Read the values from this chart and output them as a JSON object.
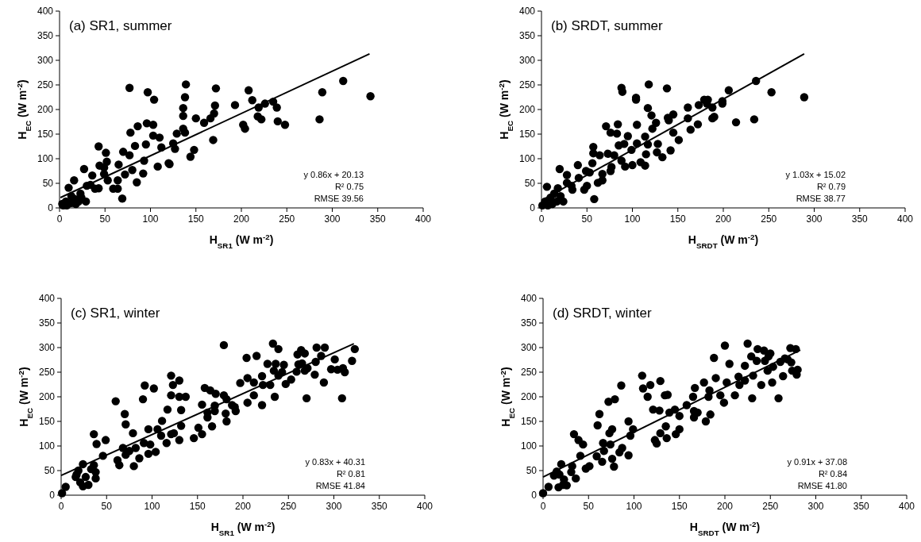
{
  "chart_data": [
    {
      "type": "scatter",
      "title": "(a) SR1, summer",
      "xlabel": "H$_{SR1}$ (W m$^{-2}$)",
      "ylabel": "H$_{EC}$ (W m$^{-2}$)",
      "xlim": [
        0,
        400
      ],
      "ylim": [
        0,
        400
      ],
      "xticks": [
        0,
        50,
        100,
        150,
        200,
        250,
        300,
        350,
        400
      ],
      "yticks": [
        0,
        50,
        100,
        150,
        200,
        250,
        300,
        350,
        400
      ],
      "grid": false,
      "annotations": [
        "y   0.86x + 20.13",
        "R² 0.75",
        "RMSE 39.56"
      ],
      "series": [
        {
          "color": "#000000",
          "marker": "circle",
          "x": [
            77,
            97,
            104,
            139,
            138,
            136,
            136,
            172,
            171,
            170,
            166,
            159,
            150,
            193,
            208,
            212,
            202,
            204,
            219,
            226,
            235,
            239,
            240,
            248,
            218,
            222,
            289,
            312,
            342,
            286,
            136,
            138,
            129,
            125,
            127,
            169,
            148,
            144,
            120,
            121,
            108,
            110,
            103,
            103,
            96,
            86,
            78,
            95,
            83,
            70,
            77,
            112,
            93,
            92,
            85,
            80,
            72,
            65,
            64,
            64,
            69,
            59,
            53,
            49,
            52,
            51,
            43,
            49,
            44,
            36,
            27,
            34,
            39,
            43,
            30,
            16,
            10,
            23,
            29,
            17,
            13,
            7,
            4,
            8,
            13,
            21,
            24,
            3,
            18
          ],
          "values": [
            244,
            235,
            220,
            251,
            225,
            203,
            187,
            243,
            208,
            192,
            182,
            173,
            182,
            209,
            239,
            219,
            169,
            161,
            204,
            212,
            216,
            204,
            176,
            169,
            186,
            180,
            235,
            258,
            227,
            180,
            161,
            153,
            151,
            131,
            120,
            138,
            118,
            104,
            91,
            89,
            84,
            143,
            147,
            169,
            172,
            166,
            153,
            129,
            126,
            114,
            107,
            123,
            96,
            70,
            52,
            77,
            68,
            88,
            56,
            39,
            19,
            39,
            56,
            69,
            94,
            112,
            125,
            82,
            86,
            66,
            79,
            47,
            39,
            40,
            45,
            56,
            41,
            29,
            13,
            18,
            24,
            13,
            5,
            5,
            10,
            13,
            21,
            8,
            8
          ]
        },
        {
          "type": "line",
          "color": "#000000",
          "marker": "none",
          "x": [
            1,
            341
          ],
          "values": [
            21,
            313
          ]
        }
      ]
    },
    {
      "type": "scatter",
      "title": "(b) SRDT, summer",
      "xlabel": "H$_{SRDT}$ (W m$^{-2}$)",
      "ylabel": "H$_{EC}$ (W m$^{-2}$)",
      "xlim": [
        0,
        400
      ],
      "ylim": [
        0,
        400
      ],
      "xticks": [
        0,
        50,
        100,
        150,
        200,
        250,
        300,
        350,
        400
      ],
      "yticks": [
        0,
        50,
        100,
        150,
        200,
        250,
        300,
        350,
        400
      ],
      "grid": false,
      "annotations": [
        "y   1.03x + 15.02",
        "R² 0.79",
        "RMSE 38.77"
      ],
      "series": [
        {
          "color": "#000000",
          "marker": "circle",
          "x": [
            88,
            89,
            118,
            138,
            104,
            104,
            117,
            121,
            126,
            122,
            145,
            139,
            140,
            161,
            161,
            164,
            172,
            173,
            179,
            183,
            182,
            188,
            188,
            190,
            199,
            199,
            206,
            214,
            234,
            236,
            253,
            289,
            71,
            76,
            83,
            84,
            95,
            105,
            85,
            91,
            105,
            99,
            100,
            92,
            88,
            109,
            114,
            115,
            114,
            117,
            128,
            127,
            133,
            142,
            145,
            151,
            57,
            57,
            64,
            56,
            73,
            80,
            76,
            77,
            67,
            67,
            62,
            58,
            53,
            49,
            41,
            40,
            28,
            28,
            20,
            50,
            47,
            34,
            24,
            18,
            14,
            6,
            10,
            4,
            1,
            7,
            12,
            17,
            21,
            33
          ],
          "values": [
            244,
            236,
            251,
            243,
            224,
            220,
            203,
            188,
            173,
            161,
            190,
            183,
            178,
            204,
            182,
            159,
            170,
            209,
            220,
            220,
            212,
            204,
            182,
            185,
            212,
            217,
            239,
            174,
            180,
            258,
            235,
            225,
            166,
            153,
            151,
            170,
            146,
            169,
            127,
            130,
            131,
            118,
            87,
            84,
            96,
            93,
            86,
            109,
            145,
            129,
            130,
            113,
            103,
            117,
            153,
            138,
            124,
            111,
            107,
            91,
            110,
            107,
            75,
            83,
            69,
            56,
            51,
            18,
            72,
            75,
            61,
            87,
            67,
            51,
            79,
            45,
            37,
            37,
            13,
            40,
            29,
            43,
            21,
            13,
            5,
            5,
            8,
            13,
            24,
            45
          ]
        },
        {
          "type": "line",
          "color": "#000000",
          "marker": "none",
          "x": [
            0,
            289
          ],
          "values": [
            15,
            313
          ]
        }
      ]
    },
    {
      "type": "scatter",
      "title": "(c) SR1, winter",
      "xlabel": "H$_{SR1}$ (W m$^{-2}$)",
      "ylabel": "H$_{EC}$ (W m$^{-2}$)",
      "xlim": [
        0,
        400
      ],
      "ylim": [
        0,
        400
      ],
      "xticks": [
        0,
        50,
        100,
        150,
        200,
        250,
        300,
        350,
        400
      ],
      "yticks": [
        0,
        50,
        100,
        150,
        200,
        250,
        300,
        350,
        400
      ],
      "grid": false,
      "annotations": [
        "y   0.83x + 40.31",
        "R² 0.81",
        "RMSE 41.84"
      ],
      "series": [
        {
          "color": "#000000",
          "marker": "circle",
          "x": [
            1,
            5,
            36,
            39,
            49,
            46,
            36,
            38,
            38,
            30,
            24,
            21,
            17,
            19,
            24,
            16,
            33,
            27,
            60,
            70,
            71,
            62,
            64,
            68,
            71,
            79,
            80,
            75,
            82,
            86,
            91,
            96,
            98,
            104,
            92,
            102,
            90,
            96,
            106,
            111,
            110,
            116,
            117,
            121,
            123,
            121,
            130,
            130,
            137,
            132,
            132,
            124,
            121,
            130,
            146,
            151,
            155,
            155,
            158,
            164,
            161,
            161,
            166,
            170,
            169,
            169,
            179,
            179,
            182,
            181,
            182,
            188,
            191,
            192,
            204,
            215,
            197,
            205,
            212,
            212,
            205,
            221,
            221,
            222,
            230,
            227,
            233,
            239,
            236,
            245,
            234,
            235,
            239,
            243,
            247,
            253,
            259,
            260,
            264,
            268,
            265,
            268,
            270,
            261,
            279,
            281,
            290,
            286,
            280,
            289,
            301,
            297,
            304,
            310,
            312,
            309,
            320,
            323,
            271
          ],
          "values": [
            4,
            17,
            124,
            104,
            112,
            80,
            61,
            47,
            34,
            21,
            18,
            26,
            42,
            50,
            63,
            37,
            53,
            37,
            191,
            165,
            144,
            71,
            61,
            96,
            82,
            126,
            59,
            90,
            96,
            75,
            106,
            84,
            103,
            88,
            223,
            217,
            195,
            134,
            134,
            151,
            121,
            106,
            174,
            243,
            224,
            203,
            233,
            200,
            200,
            173,
            141,
            126,
            124,
            112,
            116,
            137,
            124,
            184,
            218,
            213,
            168,
            158,
            140,
            206,
            171,
            182,
            305,
            203,
            195,
            166,
            150,
            183,
            179,
            171,
            279,
            283,
            228,
            238,
            229,
            203,
            188,
            242,
            183,
            224,
            224,
            267,
            308,
            297,
            267,
            265,
            253,
            200,
            243,
            250,
            226,
            235,
            251,
            286,
            295,
            288,
            268,
            253,
            197,
            266,
            245,
            300,
            300,
            283,
            271,
            229,
            276,
            256,
            255,
            258,
            250,
            197,
            273,
            297,
            258
          ]
        },
        {
          "type": "line",
          "color": "#000000",
          "marker": "none",
          "x": [
            0,
            322
          ],
          "values": [
            40,
            308
          ]
        }
      ]
    },
    {
      "type": "scatter",
      "title": "(d) SRDT, winter",
      "xlabel": "H$_{SRDT}$ (W m$^{-2}$)",
      "ylabel": "H$_{EC}$ (W m$^{-2}$)",
      "xlim": [
        0,
        400
      ],
      "ylim": [
        0,
        400
      ],
      "xticks": [
        0,
        50,
        100,
        150,
        200,
        250,
        300,
        350,
        400
      ],
      "yticks": [
        0,
        50,
        100,
        150,
        200,
        250,
        300,
        350,
        400
      ],
      "grid": false,
      "annotations": [
        "y   0.91x + 37.08",
        "R² 0.84",
        "RMSE 41.80"
      ],
      "series": [
        {
          "color": "#000000",
          "marker": "circle",
          "x": [
            0,
            6,
            12,
            15,
            20,
            18,
            17,
            22,
            26,
            23,
            31,
            32,
            36,
            34,
            39,
            44,
            41,
            47,
            51,
            60,
            62,
            59,
            65,
            66,
            67,
            72,
            79,
            73,
            76,
            74,
            76,
            78,
            84,
            87,
            86,
            94,
            94,
            96,
            99,
            109,
            110,
            115,
            118,
            129,
            121,
            128,
            123,
            125,
            129,
            134,
            137,
            135,
            136,
            139,
            145,
            146,
            150,
            150,
            158,
            165,
            167,
            166,
            170,
            166,
            179,
            177,
            183,
            182,
            184,
            190,
            188,
            195,
            199,
            202,
            200,
            205,
            211,
            215,
            216,
            222,
            225,
            222,
            229,
            230,
            231,
            235,
            236,
            240,
            243,
            244,
            247,
            250,
            252,
            253,
            248,
            259,
            261,
            264,
            269,
            273,
            272,
            278,
            274,
            280,
            279,
            266
          ],
          "values": [
            4,
            17,
            40,
            48,
            63,
            42,
            16,
            21,
            20,
            32,
            47,
            59,
            34,
            124,
            112,
            103,
            80,
            54,
            59,
            142,
            165,
            79,
            68,
            106,
            90,
            190,
            195,
            126,
            134,
            103,
            74,
            58,
            87,
            96,
            223,
            150,
            81,
            121,
            134,
            243,
            217,
            200,
            224,
            232,
            174,
            172,
            112,
            105,
            126,
            203,
            204,
            140,
            116,
            168,
            174,
            124,
            134,
            161,
            183,
            200,
            218,
            158,
            168,
            171,
            150,
            229,
            213,
            200,
            164,
            238,
            279,
            203,
            188,
            229,
            304,
            267,
            203,
            241,
            224,
            233,
            308,
            263,
            282,
            197,
            243,
            273,
            297,
            224,
            294,
            273,
            253,
            288,
            229,
            261,
            282,
            197,
            271,
            242,
            276,
            270,
            299,
            297,
            253,
            255,
            245,
            278
          ]
        },
        {
          "type": "line",
          "color": "#000000",
          "marker": "none",
          "x": [
            0,
            283
          ],
          "values": [
            37,
            295
          ]
        }
      ]
    }
  ]
}
